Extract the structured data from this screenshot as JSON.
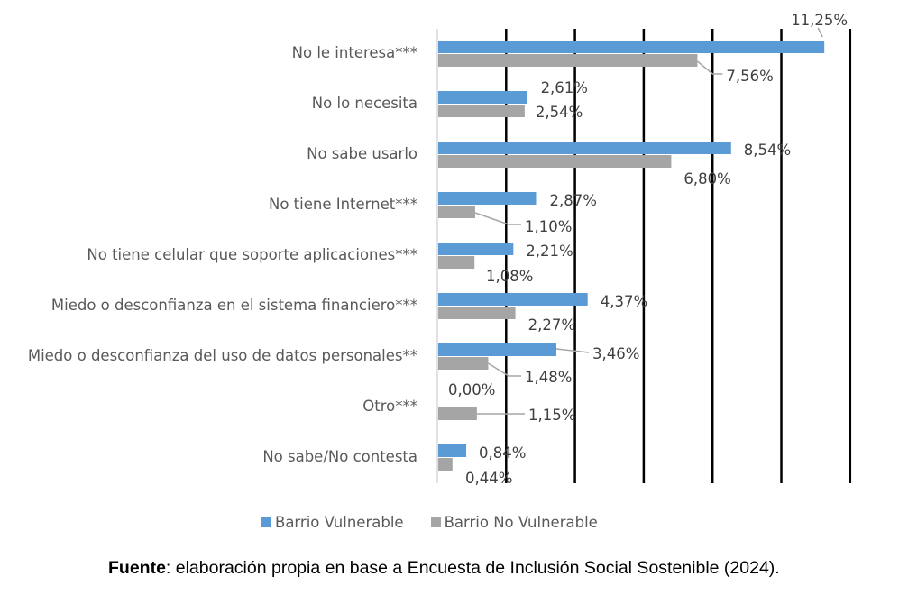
{
  "chart_data": {
    "type": "bar",
    "orientation": "horizontal",
    "title": "",
    "xlabel": "",
    "ylabel": "",
    "xlim": [
      0,
      12
    ],
    "x_gridline_step": 2,
    "grid": true,
    "legend_position": "bottom",
    "categories": [
      "No le interesa***",
      "No lo necesita",
      "No sabe usarlo",
      "No tiene Internet***",
      "No tiene celular que soporte aplicaciones***",
      "Miedo o desconfianza en el sistema financiero***",
      "Miedo o desconfianza del uso de datos personales**",
      "Otro***",
      "No sabe/No contesta"
    ],
    "series": [
      {
        "name": "Barrio Vulnerable",
        "color": "#5B9BD5",
        "values": [
          11.25,
          2.61,
          8.54,
          2.87,
          2.21,
          4.37,
          3.46,
          0.0,
          0.84
        ],
        "labels": [
          "11,25%",
          "2,61%",
          "8,54%",
          "2,87%",
          "2,21%",
          "4,37%",
          "3,46%",
          "0,00%",
          "0,84%"
        ]
      },
      {
        "name": "Barrio No Vulnerable",
        "color": "#A5A5A5",
        "values": [
          7.56,
          2.54,
          6.8,
          1.1,
          1.08,
          2.27,
          1.48,
          1.15,
          0.44
        ],
        "labels": [
          "7,56%",
          "2,54%",
          "6,80%",
          "1,10%",
          "1,08%",
          "2,27%",
          "1,48%",
          "1,15%",
          "0,44%"
        ]
      }
    ]
  },
  "legend": {
    "items": [
      {
        "label": "Barrio Vulnerable",
        "color": "#5B9BD5"
      },
      {
        "label": "Barrio No Vulnerable",
        "color": "#A5A5A5"
      }
    ]
  },
  "source": {
    "prefix": "Fuente",
    "text": ": elaboración propia en base a Encuesta de Inclusión Social Sostenible (2024)."
  }
}
